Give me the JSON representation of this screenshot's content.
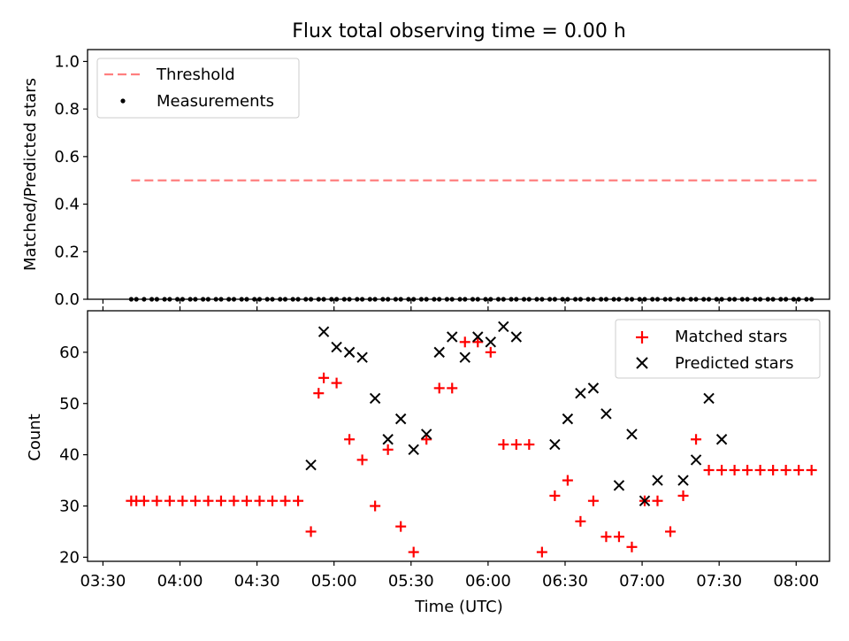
{
  "chart_data": [
    {
      "type": "scatter",
      "title": "Flux total observing time = 0.00 h",
      "ylabel": "Matched/Predicted stars",
      "xlabel": "",
      "ylim": [
        0,
        1.05
      ],
      "x_range": [
        "03:24",
        "08:13"
      ],
      "yticks": [
        "0.0",
        "0.2",
        "0.4",
        "0.6",
        "0.8",
        "1.0"
      ],
      "legend_position": "top-left",
      "legend": [
        "Threshold",
        "Measurements"
      ],
      "threshold": {
        "name": "Threshold",
        "value": 0.5,
        "x_start": "03:41",
        "x_end": "08:08",
        "color": "#ff7f7f"
      },
      "series": [
        {
          "name": "Measurements",
          "color": "#000000",
          "x": [
            "03:41",
            "03:43",
            "03:46",
            "03:49",
            "03:51",
            "03:54",
            "03:56",
            "03:59",
            "04:01",
            "04:04",
            "04:06",
            "04:09",
            "04:11",
            "04:14",
            "04:16",
            "04:19",
            "04:21",
            "04:24",
            "04:26",
            "04:29",
            "04:31",
            "04:34",
            "04:36",
            "04:39",
            "04:41",
            "04:44",
            "04:46",
            "04:49",
            "04:51",
            "04:54",
            "04:56",
            "04:59",
            "05:01",
            "05:04",
            "05:06",
            "05:09",
            "05:11",
            "05:14",
            "05:16",
            "05:19",
            "05:21",
            "05:24",
            "05:26",
            "05:29",
            "05:31",
            "05:34",
            "05:36",
            "05:39",
            "05:41",
            "05:44",
            "05:46",
            "05:49",
            "05:51",
            "05:54",
            "05:56",
            "05:59",
            "06:01",
            "06:04",
            "06:06",
            "06:09",
            "06:11",
            "06:14",
            "06:16",
            "06:19",
            "06:21",
            "06:24",
            "06:26",
            "06:29",
            "06:31",
            "06:34",
            "06:36",
            "06:39",
            "06:41",
            "06:44",
            "06:46",
            "06:49",
            "06:51",
            "06:54",
            "06:56",
            "06:59",
            "07:01",
            "07:04",
            "07:06",
            "07:09",
            "07:11",
            "07:14",
            "07:16",
            "07:19",
            "07:21",
            "07:24",
            "07:26",
            "07:29",
            "07:31",
            "07:34",
            "07:36",
            "07:39",
            "07:41",
            "07:44",
            "07:46",
            "07:49",
            "07:51",
            "07:54",
            "07:56",
            "07:59",
            "08:01",
            "08:04",
            "08:06"
          ],
          "y": [
            0,
            0,
            0,
            0,
            0,
            0,
            0,
            0,
            0,
            0,
            0,
            0,
            0,
            0,
            0,
            0,
            0,
            0,
            0,
            0,
            0,
            0,
            0,
            0,
            0,
            0,
            0,
            0,
            0,
            0,
            0,
            0,
            0,
            0,
            0,
            0,
            0,
            0,
            0,
            0,
            0,
            0,
            0,
            0,
            0,
            0,
            0,
            0,
            0,
            0,
            0,
            0,
            0,
            0,
            0,
            0,
            0,
            0,
            0,
            0,
            0,
            0,
            0,
            0,
            0,
            0,
            0,
            0,
            0,
            0,
            0,
            0,
            0,
            0,
            0,
            0,
            0,
            0,
            0,
            0,
            0,
            0,
            0,
            0,
            0,
            0,
            0,
            0,
            0,
            0,
            0,
            0,
            0,
            0,
            0,
            0,
            0,
            0,
            0,
            0,
            0,
            0,
            0,
            0,
            0,
            0,
            0
          ]
        }
      ]
    },
    {
      "type": "scatter",
      "title": "",
      "ylabel": "Count",
      "xlabel": "Time (UTC)",
      "ylim": [
        19.2,
        68.1
      ],
      "x_range": [
        "03:24",
        "08:13"
      ],
      "yticks": [
        "20",
        "30",
        "40",
        "50",
        "60"
      ],
      "xticks": [
        "03:30",
        "04:00",
        "04:30",
        "05:00",
        "05:30",
        "06:00",
        "06:30",
        "07:00",
        "07:30",
        "08:00"
      ],
      "legend_position": "top-right",
      "legend": [
        "Matched stars",
        "Predicted stars"
      ],
      "series": [
        {
          "name": "Matched stars",
          "color": "#ff0000",
          "marker": "plus",
          "x": [
            "03:41",
            "03:43",
            "03:46",
            "03:51",
            "03:56",
            "04:01",
            "04:06",
            "04:11",
            "04:16",
            "04:21",
            "04:26",
            "04:31",
            "04:36",
            "04:41",
            "04:46",
            "04:51",
            "04:54",
            "04:56",
            "05:01",
            "05:06",
            "05:11",
            "05:16",
            "05:21",
            "05:26",
            "05:31",
            "05:36",
            "05:41",
            "05:46",
            "05:51",
            "05:56",
            "06:01",
            "06:06",
            "06:11",
            "06:16",
            "06:21",
            "06:26",
            "06:31",
            "06:36",
            "06:41",
            "06:46",
            "06:51",
            "06:56",
            "07:01",
            "07:06",
            "07:11",
            "07:16",
            "07:21",
            "07:26",
            "07:31",
            "07:36",
            "07:41",
            "07:46",
            "07:51",
            "07:56",
            "08:01",
            "08:06"
          ],
          "y": [
            31,
            31,
            31,
            31,
            31,
            31,
            31,
            31,
            31,
            31,
            31,
            31,
            31,
            31,
            31,
            25,
            52,
            55,
            54,
            43,
            39,
            30,
            41,
            26,
            21,
            43,
            53,
            53,
            62,
            62,
            60,
            42,
            42,
            42,
            21,
            32,
            35,
            27,
            31,
            24,
            24,
            22,
            31,
            31,
            25,
            32,
            43,
            37,
            37,
            37,
            37,
            37,
            37,
            37,
            37,
            37
          ]
        },
        {
          "name": "Predicted stars",
          "color": "#000000",
          "marker": "x",
          "x": [
            "04:51",
            "04:56",
            "05:01",
            "05:06",
            "05:11",
            "05:16",
            "05:21",
            "05:26",
            "05:31",
            "05:36",
            "05:41",
            "05:46",
            "05:51",
            "05:56",
            "06:01",
            "06:06",
            "06:11",
            "06:26",
            "06:31",
            "06:36",
            "06:41",
            "06:46",
            "06:51",
            "06:56",
            "07:01",
            "07:06",
            "07:16",
            "07:21",
            "07:26",
            "07:31"
          ],
          "y": [
            38,
            64,
            61,
            60,
            59,
            51,
            43,
            47,
            41,
            44,
            60,
            63,
            59,
            63,
            62,
            65,
            63,
            42,
            47,
            52,
            53,
            48,
            34,
            44,
            31,
            35,
            35,
            39,
            51,
            43
          ]
        }
      ]
    }
  ]
}
